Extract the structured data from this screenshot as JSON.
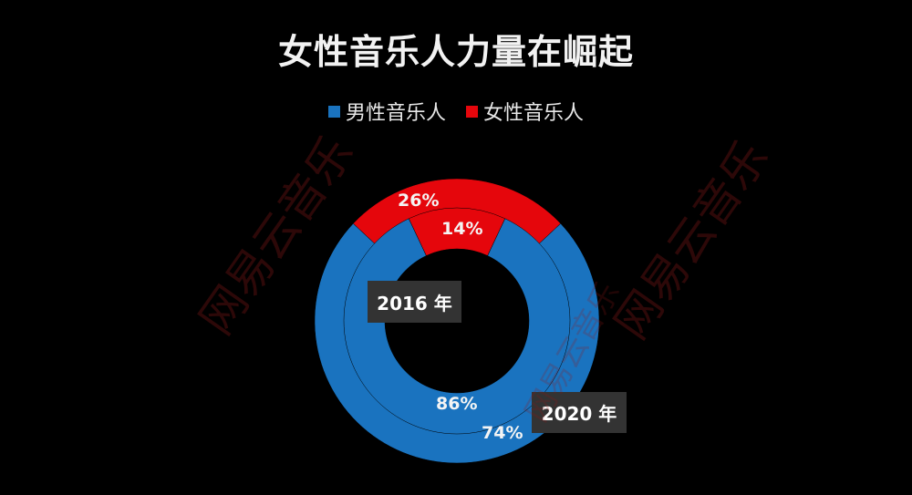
{
  "colors": {
    "male": "#1a73bf",
    "female": "#e5060c",
    "background": "#000000"
  },
  "chart_data": {
    "type": "pie",
    "variant": "nested-donut",
    "title": "女性音乐人力量在崛起",
    "legend": [
      {
        "name": "男性音乐人",
        "color": "#1a73bf"
      },
      {
        "name": "女性音乐人",
        "color": "#e5060c"
      }
    ],
    "categories": [
      "男性音乐人",
      "女性音乐人"
    ],
    "series": [
      {
        "name": "2016 年",
        "ring": "inner",
        "values": [
          86,
          14
        ],
        "labels": [
          "86%",
          "14%"
        ]
      },
      {
        "name": "2020 年",
        "ring": "outer",
        "values": [
          74,
          26
        ],
        "labels": [
          "74%",
          "26%"
        ]
      }
    ]
  },
  "watermark": [
    "网易云音乐",
    "网易云音乐",
    "网易云音乐"
  ]
}
